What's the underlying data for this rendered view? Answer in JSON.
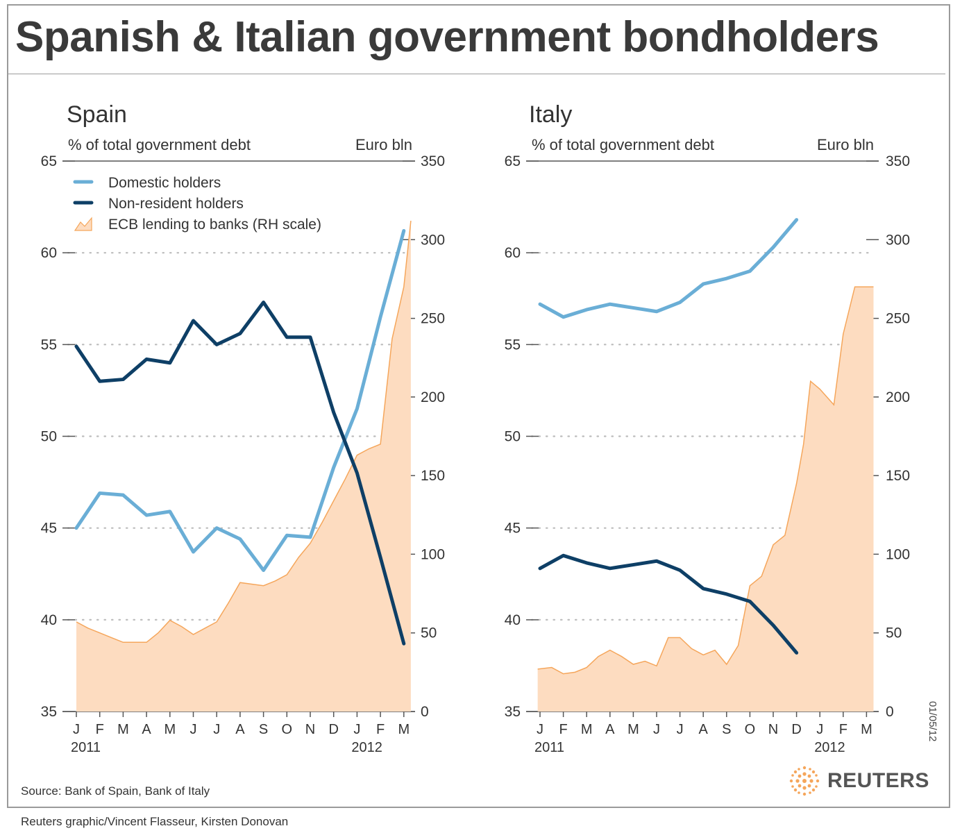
{
  "header": {
    "title": "Spanish & Italian government bondholders"
  },
  "footer": {
    "source": "Source: Bank of Spain, Bank of Italy",
    "credit": "Reuters graphic/Vincent Flasseur, Kirsten Donovan",
    "date": "01/05/12",
    "brand": "REUTERS"
  },
  "legend": {
    "items": [
      {
        "label": "Domestic holders",
        "color": "#6aaed6"
      },
      {
        "label": "Non-resident holders",
        "color": "#0e3f66"
      },
      {
        "label": "ECB lending to banks (RH scale)",
        "color": "#f5a65b"
      }
    ]
  },
  "colors": {
    "domestic": "#6aaed6",
    "nonresident": "#0e3f66",
    "ecb_fill": "#fddcc0",
    "ecb_line": "#f5a65b",
    "grid": "#bbbbbb",
    "axis": "#555555"
  },
  "chart_data": [
    {
      "type": "line",
      "title": "Spain",
      "ylabel_left": "% of total government debt",
      "ylabel_right": "Euro bln",
      "ylim_left": [
        35,
        65
      ],
      "yticks_left": [
        35,
        40,
        45,
        50,
        55,
        60,
        65
      ],
      "ylim_right": [
        0,
        350
      ],
      "yticks_right": [
        0,
        50,
        100,
        150,
        200,
        250,
        300,
        350
      ],
      "grid": true,
      "months": [
        "J",
        "F",
        "M",
        "A",
        "M",
        "J",
        "J",
        "A",
        "S",
        "O",
        "N",
        "D",
        "J",
        "F",
        "M"
      ],
      "year_labels": [
        {
          "index": 0,
          "label": "2011"
        },
        {
          "index": 12,
          "label": "2012"
        }
      ],
      "series": [
        {
          "name": "Domestic holders",
          "axis": "left",
          "values": [
            45.0,
            46.9,
            46.8,
            45.7,
            45.9,
            43.7,
            45.0,
            44.4,
            42.7,
            44.6,
            44.5,
            48.3,
            51.5,
            56.5,
            61.2
          ]
        },
        {
          "name": "Non-resident holders",
          "axis": "left",
          "values": [
            54.9,
            53.0,
            53.1,
            54.2,
            54.0,
            56.3,
            55.0,
            55.6,
            57.3,
            55.4,
            55.4,
            51.3,
            48.0,
            43.4,
            38.7
          ]
        }
      ],
      "area_series": {
        "name": "ECB lending to banks (RH scale)",
        "axis": "right",
        "x": [
          0,
          0.5,
          1,
          1.5,
          2,
          2.5,
          3,
          3.5,
          4,
          4.5,
          5,
          5.5,
          6,
          6.5,
          7,
          7.5,
          8,
          8.5,
          9,
          9.5,
          10,
          10.5,
          11,
          11.5,
          12,
          12.5,
          13,
          13.5,
          14,
          14.3
        ],
        "values": [
          57,
          53,
          50,
          47,
          44,
          44,
          44,
          50,
          58,
          54,
          49,
          53,
          57,
          69,
          82,
          81,
          80,
          83,
          87,
          98,
          107,
          120,
          134,
          148,
          163,
          167,
          170,
          237,
          270,
          312
        ]
      }
    },
    {
      "type": "line",
      "title": "Italy",
      "ylabel_left": "% of total government debt",
      "ylabel_right": "Euro bln",
      "ylim_left": [
        35,
        65
      ],
      "yticks_left": [
        35,
        40,
        45,
        50,
        55,
        60,
        65
      ],
      "ylim_right": [
        0,
        350
      ],
      "yticks_right": [
        0,
        50,
        100,
        150,
        200,
        250,
        300,
        350
      ],
      "grid": true,
      "months": [
        "J",
        "F",
        "M",
        "A",
        "M",
        "J",
        "J",
        "A",
        "S",
        "O",
        "N",
        "D",
        "J",
        "F",
        "M"
      ],
      "year_labels": [
        {
          "index": 0,
          "label": "2011"
        },
        {
          "index": 12,
          "label": "2012"
        }
      ],
      "series": [
        {
          "name": "Domestic holders",
          "axis": "left",
          "values": [
            57.2,
            56.5,
            56.9,
            57.2,
            57.0,
            56.8,
            57.3,
            58.3,
            58.6,
            59.0,
            60.3,
            61.8
          ]
        },
        {
          "name": "Non-resident holders",
          "axis": "left",
          "values": [
            42.8,
            43.5,
            43.1,
            42.8,
            43.0,
            43.2,
            42.7,
            41.7,
            41.4,
            41.0,
            39.7,
            38.2
          ]
        }
      ],
      "area_series": {
        "name": "ECB lending to banks (RH scale)",
        "axis": "right",
        "x": [
          -0.1,
          0.5,
          1,
          1.5,
          2,
          2.5,
          3,
          3.5,
          4,
          4.5,
          5,
          5.5,
          6,
          6.5,
          7,
          7.5,
          8,
          8.5,
          9,
          9.5,
          10,
          10.5,
          11,
          11.3,
          11.6,
          12,
          12.3,
          12.6,
          13,
          13.5,
          14,
          14.3
        ],
        "values": [
          27,
          28,
          24,
          25,
          28,
          35,
          39,
          35,
          30,
          32,
          29,
          47,
          47,
          40,
          36,
          39,
          30,
          42,
          80,
          86,
          106,
          112,
          145,
          170,
          210,
          205,
          200,
          195,
          240,
          270,
          270,
          270
        ]
      }
    }
  ]
}
